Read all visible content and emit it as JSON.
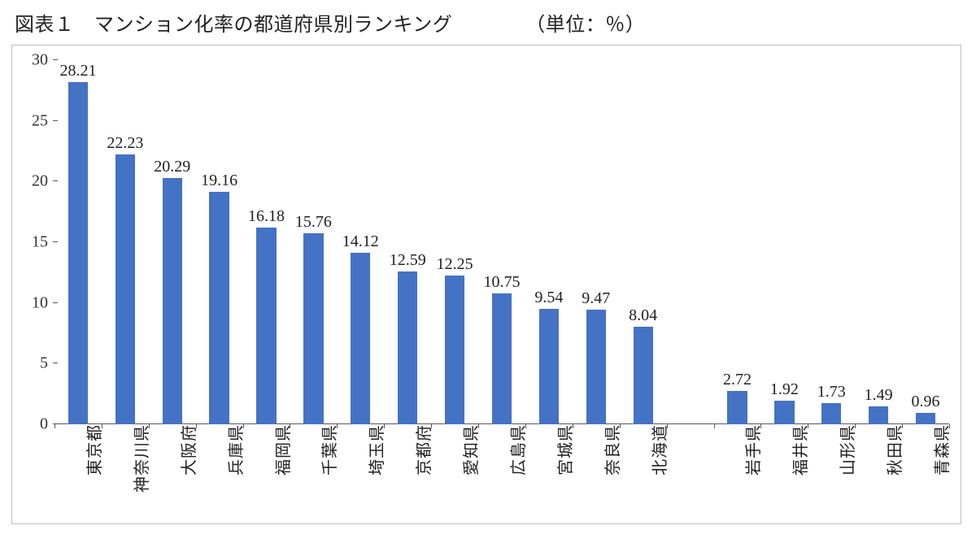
{
  "title": "図表１　マンション化率の都道府県別ランキング",
  "unit": "（単位：％）",
  "chart": {
    "type": "bar",
    "ylim": [
      0,
      30
    ],
    "ytick_step": 5,
    "yticks": [
      0,
      5,
      10,
      15,
      20,
      25,
      30
    ],
    "bar_color": "#4472c4",
    "background_color": "#ffffff",
    "border_color": "#bfbfbf",
    "axis_color": "#595959",
    "label_fontsize": 20,
    "value_fontsize": 20,
    "title_fontsize": 24,
    "bar_width_ratio": 0.42,
    "slot_count": 19,
    "gap_index": 13,
    "categories": [
      "東京都",
      "神奈川県",
      "大阪府",
      "兵庫県",
      "福岡県",
      "千葉県",
      "埼玉県",
      "京都府",
      "愛知県",
      "広島県",
      "宮城県",
      "奈良県",
      "北海道",
      "岩手県",
      "福井県",
      "山形県",
      "秋田県",
      "青森県"
    ],
    "values": [
      28.21,
      22.23,
      20.29,
      19.16,
      16.18,
      15.76,
      14.12,
      12.59,
      12.25,
      10.75,
      9.54,
      9.47,
      8.04,
      2.72,
      1.92,
      1.73,
      1.49,
      0.96
    ]
  }
}
